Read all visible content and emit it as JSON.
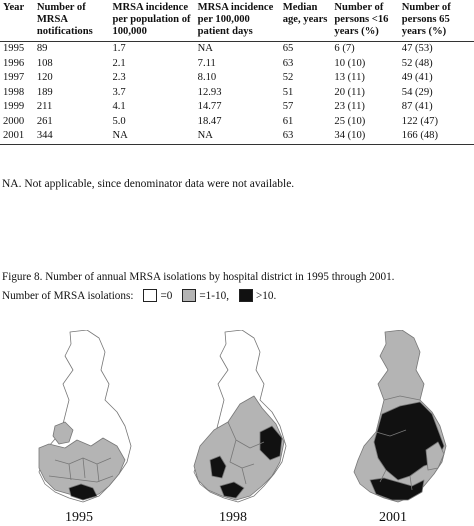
{
  "table": {
    "headers": [
      "Year",
      "Number of MRSA notifications",
      "MRSA incidence per population of 100,000",
      "MRSA incidence per 100,000 patient days",
      "Median age, years",
      "Number of persons <16 years (%)",
      "Number of persons 65 years (%)"
    ],
    "rows": [
      [
        "1995",
        "89",
        "1.7",
        "NA",
        "65",
        "6 (7)",
        "47 (53)"
      ],
      [
        "1996",
        "108",
        "2.1",
        "7.11",
        "63",
        "10 (10)",
        "52 (48)"
      ],
      [
        "1997",
        "120",
        "2.3",
        "8.10",
        "52",
        "13 (11)",
        "49 (41)"
      ],
      [
        "1998",
        "189",
        "3.7",
        "12.93",
        "51",
        "20 (11)",
        "54 (29)"
      ],
      [
        "1999",
        "211",
        "4.1",
        "14.77",
        "57",
        "23 (11)",
        "87 (41)"
      ],
      [
        "2000",
        "261",
        "5.0",
        "18.47",
        "61",
        "25 (10)",
        "122 (47)"
      ],
      [
        "2001",
        "344",
        "NA",
        "NA",
        "63",
        "34 (10)",
        "166 (48)"
      ]
    ]
  },
  "note": "NA. Not applicable, since denominator data were not available.",
  "figure": {
    "caption": "Figure 8. Number of annual MRSA isolations by hospital district in 1995 through 2001.",
    "legend_label": "Number of MRSA isolations:",
    "legend_items": [
      {
        "label": "=0",
        "color": "#ffffff"
      },
      {
        "label": "=1-10,",
        "color": "#b4b4b4"
      },
      {
        "label": ">10.",
        "color": "#111111"
      }
    ],
    "maps": [
      {
        "year": "1995"
      },
      {
        "year": "1998"
      },
      {
        "year": "2001"
      }
    ]
  }
}
